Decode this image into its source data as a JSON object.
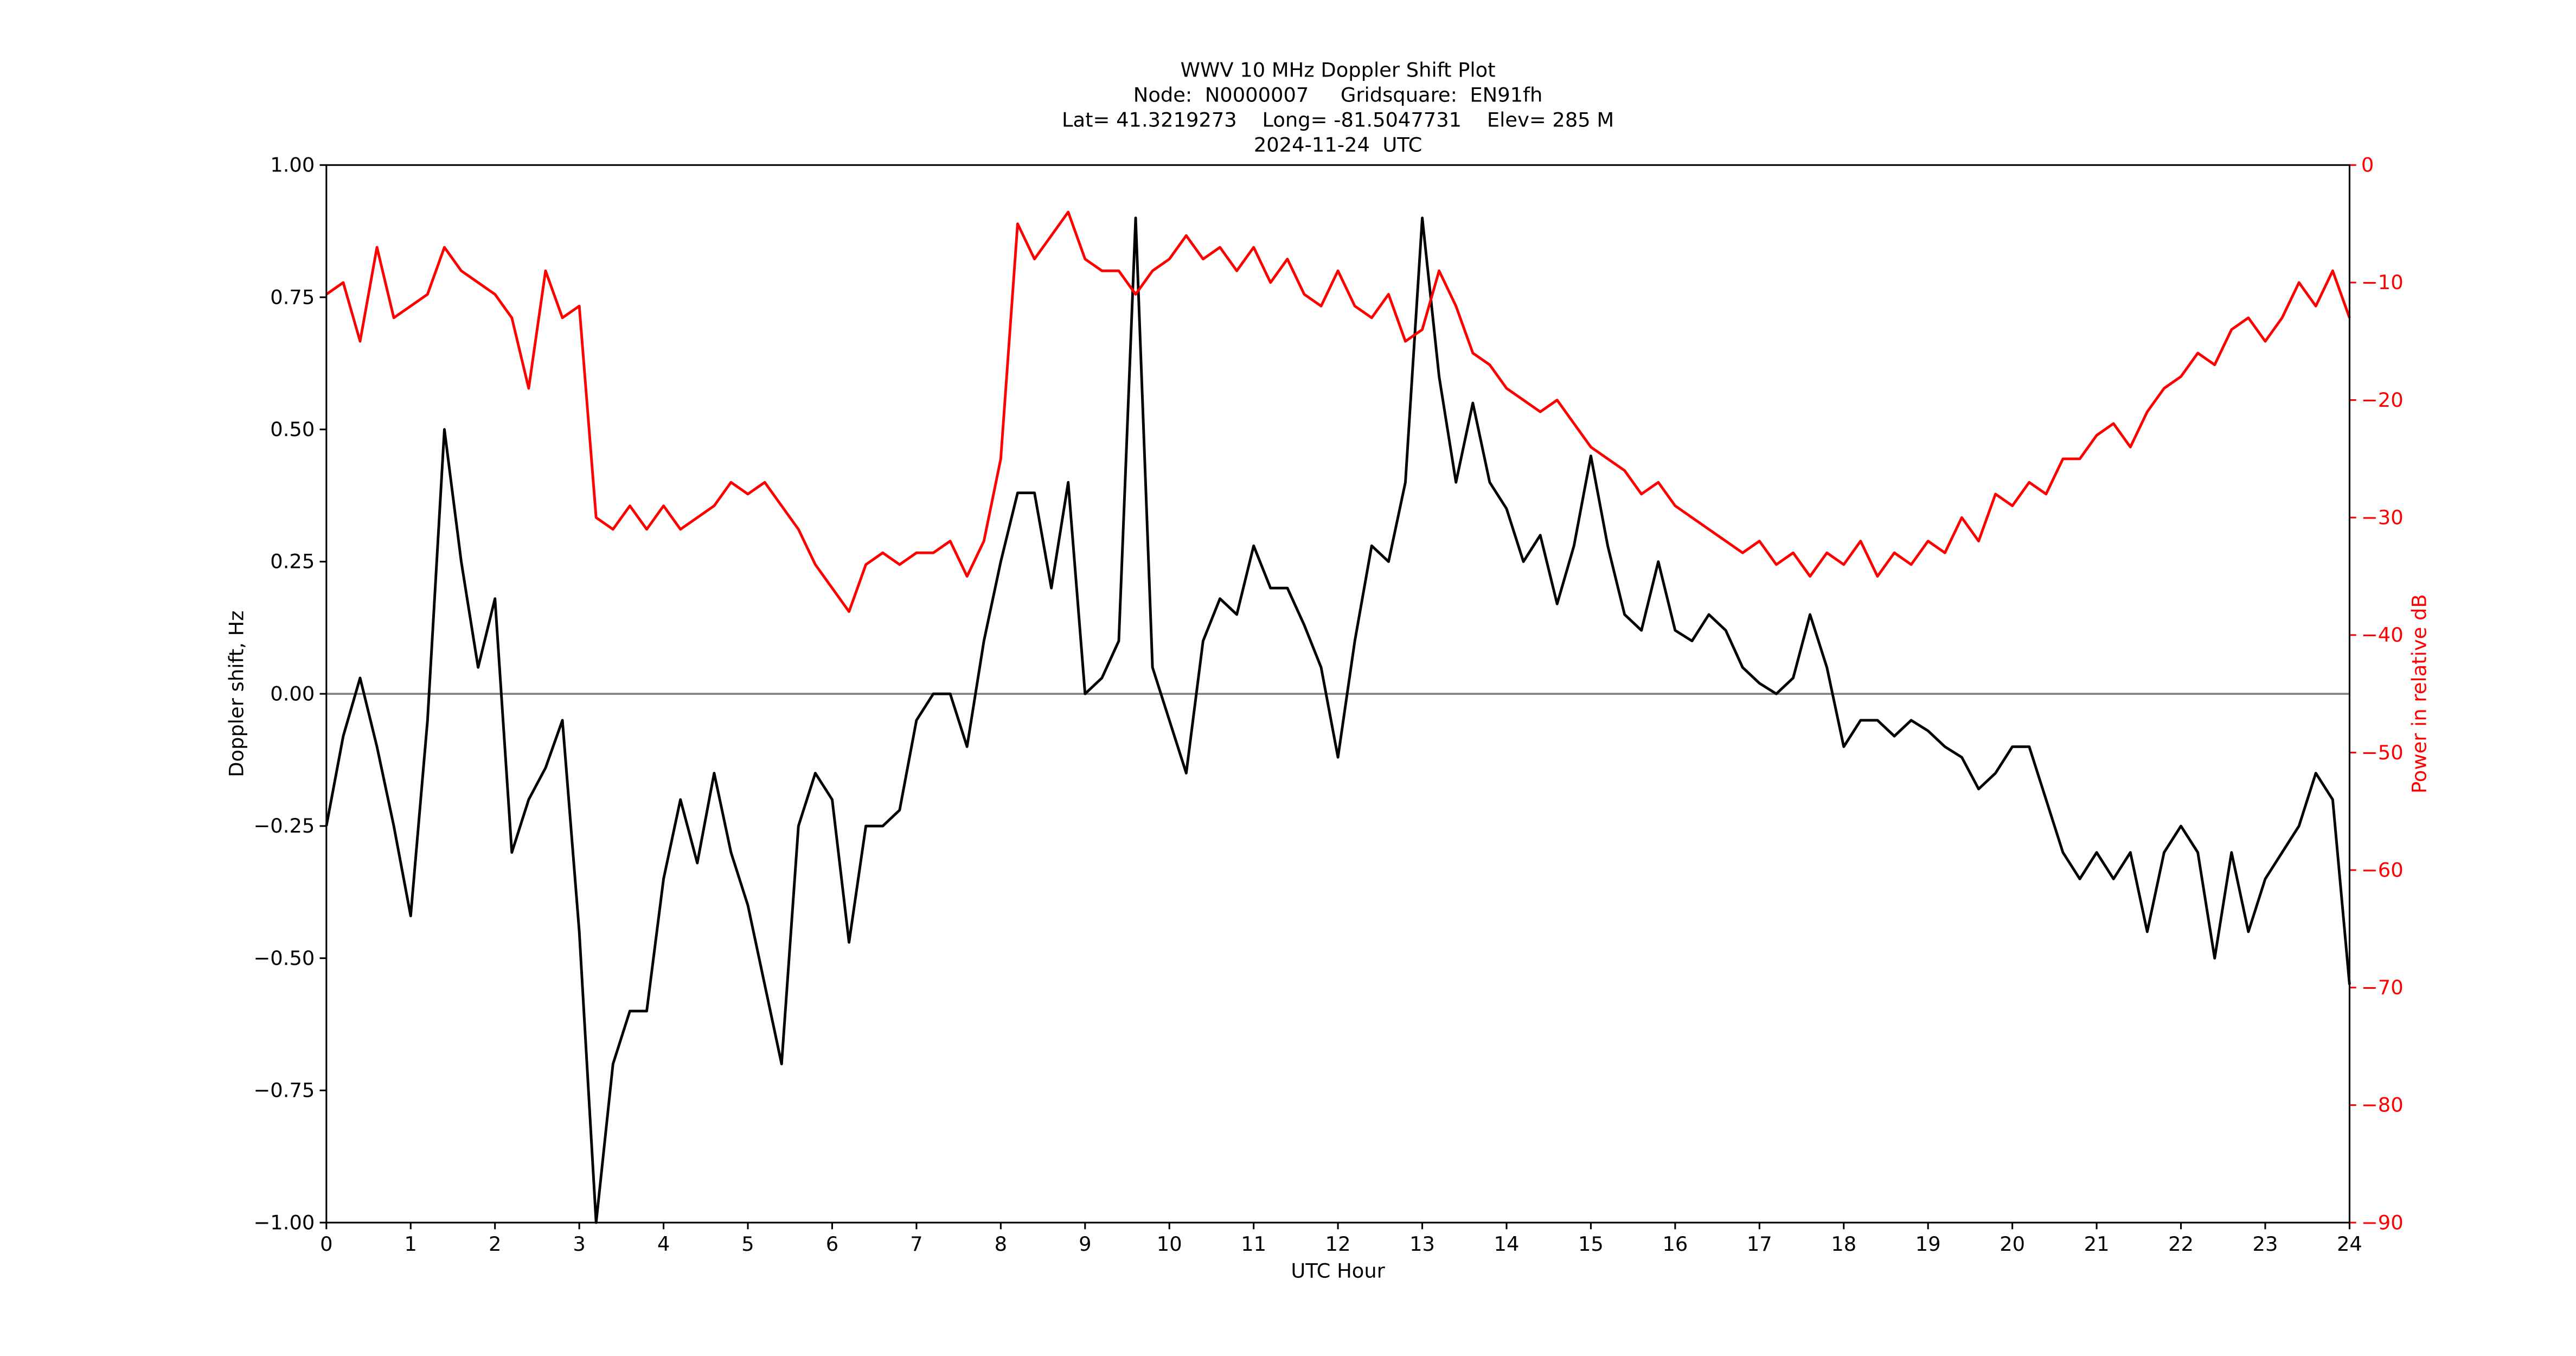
{
  "chart_data": {
    "type": "line",
    "title": [
      "WWV 10 MHz Doppler Shift Plot",
      "Node:  N0000007     Gridsquare:  EN91fh",
      "Lat= 41.3219273    Long= -81.5047731    Elev= 285 M",
      "2024-11-24  UTC"
    ],
    "xlabel": "UTC Hour",
    "ylabel": "Doppler shift, Hz",
    "y2label": "Power in relative dB",
    "x": [
      0,
      0.2,
      0.4,
      0.6,
      0.8,
      1,
      1.2,
      1.4,
      1.6,
      1.8,
      2,
      2.2,
      2.4,
      2.6,
      2.8,
      3,
      3.2,
      3.4,
      3.6,
      3.8,
      4,
      4.2,
      4.4,
      4.6,
      4.8,
      5,
      5.2,
      5.4,
      5.6,
      5.8,
      6,
      6.2,
      6.4,
      6.6,
      6.8,
      7,
      7.2,
      7.4,
      7.6,
      7.8,
      8,
      8.2,
      8.4,
      8.6,
      8.8,
      9,
      9.2,
      9.4,
      9.6,
      9.8,
      10,
      10.2,
      10.4,
      10.6,
      10.8,
      11,
      11.2,
      11.4,
      11.6,
      11.8,
      12,
      12.2,
      12.4,
      12.6,
      12.8,
      13,
      13.2,
      13.4,
      13.6,
      13.8,
      14,
      14.2,
      14.4,
      14.6,
      14.8,
      15,
      15.2,
      15.4,
      15.6,
      15.8,
      16,
      16.2,
      16.4,
      16.6,
      16.8,
      17,
      17.2,
      17.4,
      17.6,
      17.8,
      18,
      18.2,
      18.4,
      18.6,
      18.8,
      19,
      19.2,
      19.4,
      19.6,
      19.8,
      20,
      20.2,
      20.4,
      20.6,
      20.8,
      21,
      21.2,
      21.4,
      21.6,
      21.8,
      22,
      22.2,
      22.4,
      22.6,
      22.8,
      23,
      23.2,
      23.4,
      23.6,
      23.8,
      24
    ],
    "series": [
      {
        "color": "#000000",
        "values": [
          -0.25,
          -0.08,
          0.03,
          -0.1,
          -0.25,
          -0.42,
          -0.05,
          0.5,
          0.25,
          0.05,
          0.18,
          -0.3,
          -0.2,
          -0.14,
          -0.05,
          -0.45,
          -1.0,
          -0.7,
          -0.6,
          -0.6,
          -0.35,
          -0.2,
          -0.32,
          -0.15,
          -0.3,
          -0.4,
          -0.55,
          -0.7,
          -0.25,
          -0.15,
          -0.2,
          -0.47,
          -0.25,
          -0.25,
          -0.22,
          -0.05,
          0.0,
          0.0,
          -0.1,
          0.1,
          0.25,
          0.38,
          0.38,
          0.2,
          0.4,
          0.0,
          0.03,
          0.1,
          0.9,
          0.05,
          -0.05,
          -0.15,
          0.1,
          0.18,
          0.15,
          0.28,
          0.2,
          0.2,
          0.13,
          0.05,
          -0.12,
          0.1,
          0.28,
          0.25,
          0.4,
          0.9,
          0.6,
          0.4,
          0.55,
          0.4,
          0.35,
          0.25,
          0.3,
          0.17,
          0.28,
          0.45,
          0.28,
          0.15,
          0.12,
          0.25,
          0.12,
          0.1,
          0.15,
          0.12,
          0.05,
          0.02,
          0.0,
          0.03,
          0.15,
          0.05,
          -0.1,
          -0.05,
          -0.05,
          -0.08,
          -0.05,
          -0.07,
          -0.1,
          -0.12,
          -0.18,
          -0.15,
          -0.1,
          -0.1,
          -0.2,
          -0.3,
          -0.35,
          -0.3,
          -0.35,
          -0.3,
          -0.45,
          -0.3,
          -0.25,
          -0.3,
          -0.5,
          -0.3,
          -0.45,
          -0.35,
          -0.3,
          -0.25,
          -0.15,
          -0.2,
          -0.55
        ]
      },
      {
        "color": "#ff0000",
        "axis": "y2",
        "values": [
          -11,
          -10,
          -15,
          -7,
          -13,
          -12,
          -11,
          -7,
          -9,
          -10,
          -11,
          -13,
          -19,
          -9,
          -13,
          -12,
          -30,
          -31,
          -29,
          -31,
          -29,
          -31,
          -30,
          -29,
          -27,
          -28,
          -27,
          -29,
          -31,
          -34,
          -36,
          -38,
          -34,
          -33,
          -34,
          -33,
          -33,
          -32,
          -35,
          -32,
          -25,
          -5,
          -8,
          -6,
          -4,
          -8,
          -9,
          -9,
          -11,
          -9,
          -8,
          -6,
          -8,
          -7,
          -9,
          -7,
          -10,
          -8,
          -11,
          -12,
          -9,
          -12,
          -13,
          -11,
          -15,
          -14,
          -9,
          -12,
          -16,
          -17,
          -19,
          -20,
          -21,
          -20,
          -22,
          -24,
          -25,
          -26,
          -28,
          -27,
          -29,
          -30,
          -31,
          -32,
          -33,
          -32,
          -34,
          -33,
          -35,
          -33,
          -34,
          -32,
          -35,
          -33,
          -34,
          -32,
          -33,
          -30,
          -32,
          -28,
          -29,
          -27,
          -28,
          -25,
          -25,
          -23,
          -22,
          -24,
          -21,
          -19,
          -18,
          -16,
          -17,
          -14,
          -13,
          -15,
          -13,
          -10,
          -12,
          -9,
          -13
        ]
      }
    ],
    "xlim": [
      0,
      24
    ],
    "xticks": [
      0,
      1,
      2,
      3,
      4,
      5,
      6,
      7,
      8,
      9,
      10,
      11,
      12,
      13,
      14,
      15,
      16,
      17,
      18,
      19,
      20,
      21,
      22,
      23,
      24
    ],
    "ylim": [
      -1,
      1
    ],
    "yticks": [
      {
        "value": -1,
        "label": "−1.00"
      },
      {
        "value": -0.75,
        "label": "−0.75"
      },
      {
        "value": -0.5,
        "label": "−0.50"
      },
      {
        "value": -0.25,
        "label": "−0.25"
      },
      {
        "value": 0,
        "label": "0.00"
      },
      0.25,
      {
        "value": 0.5,
        "label": "0.50"
      },
      0.75,
      {
        "value": 1,
        "label": "1.00"
      }
    ],
    "y2lim": [
      -90,
      0
    ],
    "y2ticks": [
      {
        "value": -90,
        "label": "−90"
      },
      {
        "value": -80,
        "label": "−80"
      },
      {
        "value": -70,
        "label": "−70"
      },
      {
        "value": -60,
        "label": "−60"
      },
      {
        "value": -50,
        "label": "−50"
      },
      {
        "value": -40,
        "label": "−40"
      },
      {
        "value": -30,
        "label": "−30"
      },
      {
        "value": -20,
        "label": "−20"
      },
      {
        "value": -10,
        "label": "−10"
      },
      0
    ],
    "y2color": "#ff0000",
    "hline": 0
  }
}
